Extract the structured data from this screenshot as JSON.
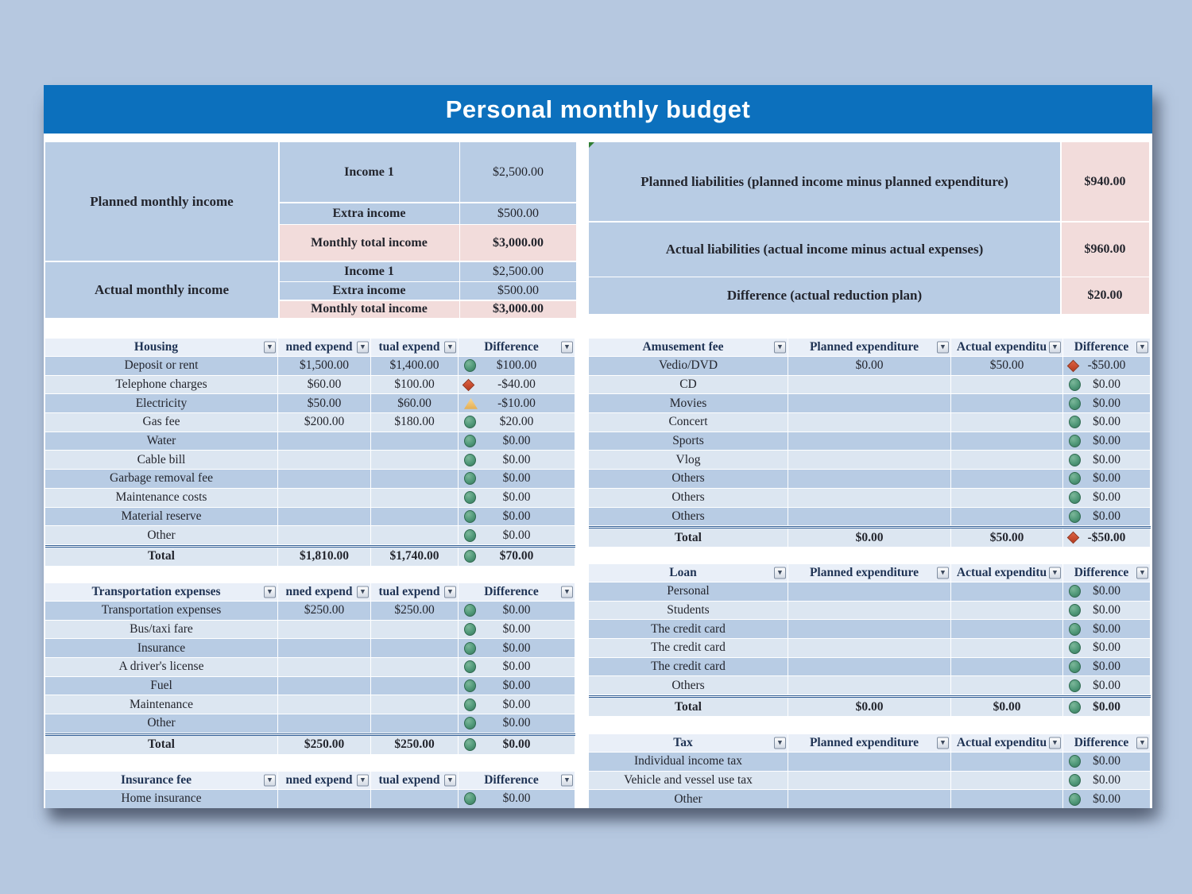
{
  "title": {
    "text": "Personal monthly budget"
  },
  "colors": {
    "banner": "#0c70bd",
    "background": "#b6c8e0",
    "row_dark": "#b8cce4",
    "row_light": "#dce6f1",
    "highlight_pink": "#f2dcdb",
    "header_row": "#e9eff8",
    "icon_green": "#4f9878",
    "icon_red": "#b63a1e",
    "icon_yellow": "#f2c879"
  },
  "income": {
    "planned_label": "Planned monthly income",
    "actual_label": "Actual monthly income",
    "planned_rows": [
      {
        "label": "Income 1",
        "value": "$2,500.00",
        "highlight": false
      },
      {
        "label": "Extra income",
        "value": "$500.00",
        "highlight": false
      },
      {
        "label": "Monthly total income",
        "value": "$3,000.00",
        "highlight": true
      }
    ],
    "actual_rows": [
      {
        "label": "Income 1",
        "value": "$2,500.00",
        "highlight": false
      },
      {
        "label": "Extra income",
        "value": "$500.00",
        "highlight": false
      },
      {
        "label": "Monthly total income",
        "value": "$3,000.00",
        "highlight": true
      }
    ]
  },
  "liabilities": {
    "rows": [
      {
        "label": "Planned liabilities (planned income minus planned expenditure)",
        "value": "$940.00"
      },
      {
        "label": "Actual liabilities (actual income minus actual expenses)",
        "value": "$960.00"
      },
      {
        "label": "Difference (actual reduction plan)",
        "value": "$20.00"
      }
    ]
  },
  "column_headers": {
    "left": [
      "nned expend",
      "tual expend",
      "Difference"
    ],
    "right": [
      "Planned expenditure",
      "Actual expenditu",
      "Difference"
    ]
  },
  "tables": [
    {
      "id": "housing",
      "side": "left",
      "title": "Housing",
      "rows": [
        {
          "name": "Deposit or rent",
          "planned": "$1,500.00",
          "actual": "$1,400.00",
          "icon": "green",
          "diff": "$100.00"
        },
        {
          "name": "Telephone charges",
          "planned": "$60.00",
          "actual": "$100.00",
          "icon": "red",
          "diff": "-$40.00"
        },
        {
          "name": "Electricity",
          "planned": "$50.00",
          "actual": "$60.00",
          "icon": "yellow",
          "diff": "-$10.00"
        },
        {
          "name": "Gas fee",
          "planned": "$200.00",
          "actual": "$180.00",
          "icon": "green",
          "diff": "$20.00"
        },
        {
          "name": "Water",
          "planned": "",
          "actual": "",
          "icon": "green",
          "diff": "$0.00"
        },
        {
          "name": "Cable bill",
          "planned": "",
          "actual": "",
          "icon": "green",
          "diff": "$0.00"
        },
        {
          "name": "Garbage removal fee",
          "planned": "",
          "actual": "",
          "icon": "green",
          "diff": "$0.00"
        },
        {
          "name": "Maintenance costs",
          "planned": "",
          "actual": "",
          "icon": "green",
          "diff": "$0.00"
        },
        {
          "name": "Material reserve",
          "planned": "",
          "actual": "",
          "icon": "green",
          "diff": "$0.00"
        },
        {
          "name": "Other",
          "planned": "",
          "actual": "",
          "icon": "green",
          "diff": "$0.00"
        }
      ],
      "total": {
        "name": "Total",
        "planned": "$1,810.00",
        "actual": "$1,740.00",
        "icon": "green",
        "diff": "$70.00"
      }
    },
    {
      "id": "transportation",
      "side": "left",
      "title": "Transportation expenses",
      "rows": [
        {
          "name": "Transportation expenses",
          "planned": "$250.00",
          "actual": "$250.00",
          "icon": "green",
          "diff": "$0.00"
        },
        {
          "name": "Bus/taxi fare",
          "planned": "",
          "actual": "",
          "icon": "green",
          "diff": "$0.00"
        },
        {
          "name": "Insurance",
          "planned": "",
          "actual": "",
          "icon": "green",
          "diff": "$0.00"
        },
        {
          "name": "A driver's license",
          "planned": "",
          "actual": "",
          "icon": "green",
          "diff": "$0.00"
        },
        {
          "name": "Fuel",
          "planned": "",
          "actual": "",
          "icon": "green",
          "diff": "$0.00"
        },
        {
          "name": "Maintenance",
          "planned": "",
          "actual": "",
          "icon": "green",
          "diff": "$0.00"
        },
        {
          "name": "Other",
          "planned": "",
          "actual": "",
          "icon": "green",
          "diff": "$0.00"
        }
      ],
      "total": {
        "name": "Total",
        "planned": "$250.00",
        "actual": "$250.00",
        "icon": "green",
        "diff": "$0.00"
      }
    },
    {
      "id": "insurance",
      "side": "left",
      "title": "Insurance fee",
      "rows": [
        {
          "name": "Home insurance",
          "planned": "",
          "actual": "",
          "icon": "green",
          "diff": "$0.00"
        }
      ]
    },
    {
      "id": "amusement",
      "side": "right",
      "title": "Amusement fee",
      "rows": [
        {
          "name": "Vedio/DVD",
          "planned": "$0.00",
          "actual": "$50.00",
          "icon": "red",
          "diff": "-$50.00"
        },
        {
          "name": "CD",
          "planned": "",
          "actual": "",
          "icon": "green",
          "diff": "$0.00"
        },
        {
          "name": "Movies",
          "planned": "",
          "actual": "",
          "icon": "green",
          "diff": "$0.00"
        },
        {
          "name": "Concert",
          "planned": "",
          "actual": "",
          "icon": "green",
          "diff": "$0.00"
        },
        {
          "name": "Sports",
          "planned": "",
          "actual": "",
          "icon": "green",
          "diff": "$0.00"
        },
        {
          "name": "Vlog",
          "planned": "",
          "actual": "",
          "icon": "green",
          "diff": "$0.00"
        },
        {
          "name": "Others",
          "planned": "",
          "actual": "",
          "icon": "green",
          "diff": "$0.00"
        },
        {
          "name": "Others",
          "planned": "",
          "actual": "",
          "icon": "green",
          "diff": "$0.00"
        },
        {
          "name": "Others",
          "planned": "",
          "actual": "",
          "icon": "green",
          "diff": "$0.00"
        }
      ],
      "total": {
        "name": "Total",
        "planned": "$0.00",
        "actual": "$50.00",
        "icon": "red",
        "diff": "-$50.00"
      }
    },
    {
      "id": "loan",
      "side": "right",
      "title": "Loan",
      "rows": [
        {
          "name": "Personal",
          "planned": "",
          "actual": "",
          "icon": "green",
          "diff": "$0.00"
        },
        {
          "name": "Students",
          "planned": "",
          "actual": "",
          "icon": "green",
          "diff": "$0.00"
        },
        {
          "name": "The credit card",
          "planned": "",
          "actual": "",
          "icon": "green",
          "diff": "$0.00"
        },
        {
          "name": "The credit card",
          "planned": "",
          "actual": "",
          "icon": "green",
          "diff": "$0.00"
        },
        {
          "name": "The credit card",
          "planned": "",
          "actual": "",
          "icon": "green",
          "diff": "$0.00"
        },
        {
          "name": "Others",
          "planned": "",
          "actual": "",
          "icon": "green",
          "diff": "$0.00"
        }
      ],
      "total": {
        "name": "Total",
        "planned": "$0.00",
        "actual": "$0.00",
        "icon": "green",
        "diff": "$0.00"
      }
    },
    {
      "id": "tax",
      "side": "right",
      "title": "Tax",
      "rows": [
        {
          "name": "Individual income tax",
          "planned": "",
          "actual": "",
          "icon": "green",
          "diff": "$0.00"
        },
        {
          "name": "Vehicle and vessel use tax",
          "planned": "",
          "actual": "",
          "icon": "green",
          "diff": "$0.00"
        },
        {
          "name": "Other",
          "planned": "",
          "actual": "",
          "icon": "green",
          "diff": "$0.00"
        }
      ]
    }
  ]
}
